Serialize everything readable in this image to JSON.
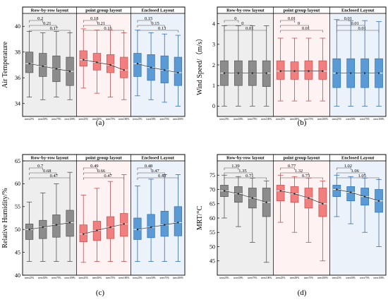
{
  "figure": {
    "panel_labels": [
      "(a)",
      "(b)",
      "(c)",
      "(d)"
    ]
  },
  "chart_data": [
    {
      "type": "box",
      "panel": "(a)",
      "ylabel": "Air Temperature",
      "ylim": [
        33,
        41
      ],
      "yticks": [
        34,
        36,
        38,
        40
      ],
      "groups": [
        "Row-by-row layout",
        "point group layout",
        "Enclosed Layout"
      ],
      "categories": [
        "trees25%",
        "trees50%",
        "trees75%",
        "trees100%"
      ],
      "boxes": [
        [
          [
            34.5,
            36.4,
            37.1,
            38.0,
            39.6
          ],
          [
            34.3,
            36.1,
            36.9,
            37.9,
            39.5
          ],
          [
            34.5,
            35.7,
            36.7,
            37.7,
            39.6
          ],
          [
            34.3,
            35.4,
            36.5,
            37.6,
            39.5
          ]
        ],
        [
          [
            35.2,
            36.9,
            37.4,
            38.1,
            39.8
          ],
          [
            34.8,
            36.6,
            37.2,
            37.9,
            39.7
          ],
          [
            34.5,
            36.4,
            37.0,
            37.8,
            39.7
          ],
          [
            34.3,
            36.0,
            36.6,
            37.6,
            39.5
          ]
        ],
        [
          [
            34.6,
            36.1,
            37.1,
            37.9,
            39.7
          ],
          [
            34.3,
            35.8,
            36.8,
            37.8,
            39.5
          ],
          [
            34.1,
            35.6,
            36.6,
            37.7,
            39.4
          ],
          [
            33.8,
            35.4,
            36.4,
            37.6,
            39.3
          ]
        ]
      ],
      "annotations": [
        [
          "0.2",
          "0.21",
          "0.17"
        ],
        [
          "0.18",
          "0.21",
          "0.16"
        ],
        [
          "0.15",
          "0.15",
          "0.13"
        ]
      ]
    },
    {
      "type": "box",
      "panel": "(b)",
      "ylabel": "Wind Speed/（m/s）",
      "ylim": [
        -0.5,
        4.5
      ],
      "yticks": [
        0,
        1,
        2,
        3,
        4
      ],
      "groups": [
        "Row-by-row layout",
        "point group layout",
        "Enclosed Layout"
      ],
      "categories": [
        "trees25%",
        "trees50%",
        "trees75%",
        "trees100%"
      ],
      "boxes": [
        [
          [
            0,
            1.0,
            1.6,
            2.2,
            3.9
          ],
          [
            0,
            1.0,
            1.6,
            2.2,
            3.9
          ],
          [
            0,
            1.0,
            1.6,
            2.2,
            3.9
          ],
          [
            0,
            0.95,
            1.6,
            2.2,
            3.9
          ]
        ],
        [
          [
            0.25,
            1.3,
            1.7,
            2.2,
            3.3
          ],
          [
            0.25,
            1.3,
            1.7,
            2.15,
            3.3
          ],
          [
            0.25,
            1.3,
            1.7,
            2.2,
            3.3
          ],
          [
            0.25,
            1.3,
            1.7,
            2.2,
            3.3
          ]
        ],
        [
          [
            0,
            0.9,
            1.6,
            2.3,
            4.2
          ],
          [
            0,
            0.9,
            1.6,
            2.3,
            4.15
          ],
          [
            0,
            0.9,
            1.6,
            2.3,
            4.15
          ],
          [
            0,
            0.9,
            1.6,
            2.3,
            4.1
          ]
        ]
      ],
      "annotations": [
        [
          "0",
          "0",
          "0.01"
        ],
        [
          "0.01",
          "0",
          "0.01"
        ],
        [
          "0.01",
          "0.01",
          "0.01"
        ]
      ]
    },
    {
      "type": "box",
      "panel": "(c)",
      "ylabel": "Relative Humidity/%",
      "ylim": [
        40,
        65
      ],
      "yticks": [
        40,
        45,
        50,
        55,
        60,
        65
      ],
      "groups": [
        "Row-by-row layout",
        "point group layout",
        "Enclosed Layout"
      ],
      "categories": [
        "trees25%",
        "trees50%",
        "trees75%",
        "trees100%"
      ],
      "boxes": [
        [
          [
            43.0,
            47.8,
            50.0,
            51.2,
            56.0
          ],
          [
            43.0,
            48.0,
            50.5,
            52.0,
            58.0
          ],
          [
            43.0,
            48.3,
            51.0,
            53.2,
            60.0
          ],
          [
            43.0,
            48.5,
            51.5,
            54.2,
            62.5
          ]
        ],
        [
          [
            42.8,
            47.3,
            49.0,
            51.0,
            57.5
          ],
          [
            43.0,
            47.6,
            49.8,
            51.8,
            59.0
          ],
          [
            43.0,
            48.0,
            50.5,
            52.8,
            60.5
          ],
          [
            43.0,
            48.5,
            51.2,
            53.5,
            62.0
          ]
        ],
        [
          [
            43.0,
            47.8,
            50.0,
            52.5,
            59.5
          ],
          [
            43.0,
            48.2,
            50.5,
            53.3,
            61.0
          ],
          [
            43.0,
            48.5,
            51.0,
            54.0,
            62.0
          ],
          [
            43.0,
            48.6,
            51.5,
            55.0,
            62.0
          ]
        ]
      ],
      "annotations": [
        [
          "0.7",
          "0.68",
          "0.47"
        ],
        [
          "0.49",
          "0.66",
          "0.47"
        ],
        [
          "0.48",
          "0.47",
          "0.43"
        ]
      ]
    },
    {
      "type": "box",
      "panel": "(d)",
      "ylabel": "MRT/°C",
      "ylim": [
        40,
        80
      ],
      "yticks": [
        45,
        50,
        55,
        60,
        65,
        70,
        75
      ],
      "groups": [
        "Row-by-row layout",
        "point group layout",
        "Enclosed Layout"
      ],
      "categories": [
        "trees25%",
        "trees50%",
        "trees75%",
        "trees100%"
      ],
      "boxes": [
        [
          [
            60.0,
            67.5,
            69.5,
            71.5,
            75.0
          ],
          [
            57.0,
            65.5,
            68.5,
            71.0,
            74.5
          ],
          [
            51.5,
            63.5,
            67.0,
            70.5,
            74.0
          ],
          [
            44.5,
            60.5,
            65.5,
            70.5,
            73.0
          ]
        ],
        [
          [
            58.5,
            66.0,
            69.5,
            71.5,
            75.0
          ],
          [
            55.0,
            65.5,
            68.5,
            71.0,
            74.5
          ],
          [
            51.5,
            63.5,
            67.0,
            70.5,
            74.0
          ],
          [
            45.0,
            60.5,
            65.0,
            70.5,
            73.0
          ]
        ],
        [
          [
            60.5,
            67.5,
            70.0,
            71.5,
            75.0
          ],
          [
            58.0,
            66.0,
            69.0,
            71.0,
            74.5
          ],
          [
            55.0,
            64.5,
            67.5,
            70.5,
            74.0
          ],
          [
            50.0,
            62.0,
            66.0,
            70.0,
            73.5
          ]
        ]
      ],
      "annotations": [
        [
          "1.39",
          "1.35",
          "0.71"
        ],
        [
          "0.77",
          "1.32",
          "0.73"
        ],
        [
          "1.02",
          "1.06",
          "1.05"
        ]
      ]
    }
  ]
}
